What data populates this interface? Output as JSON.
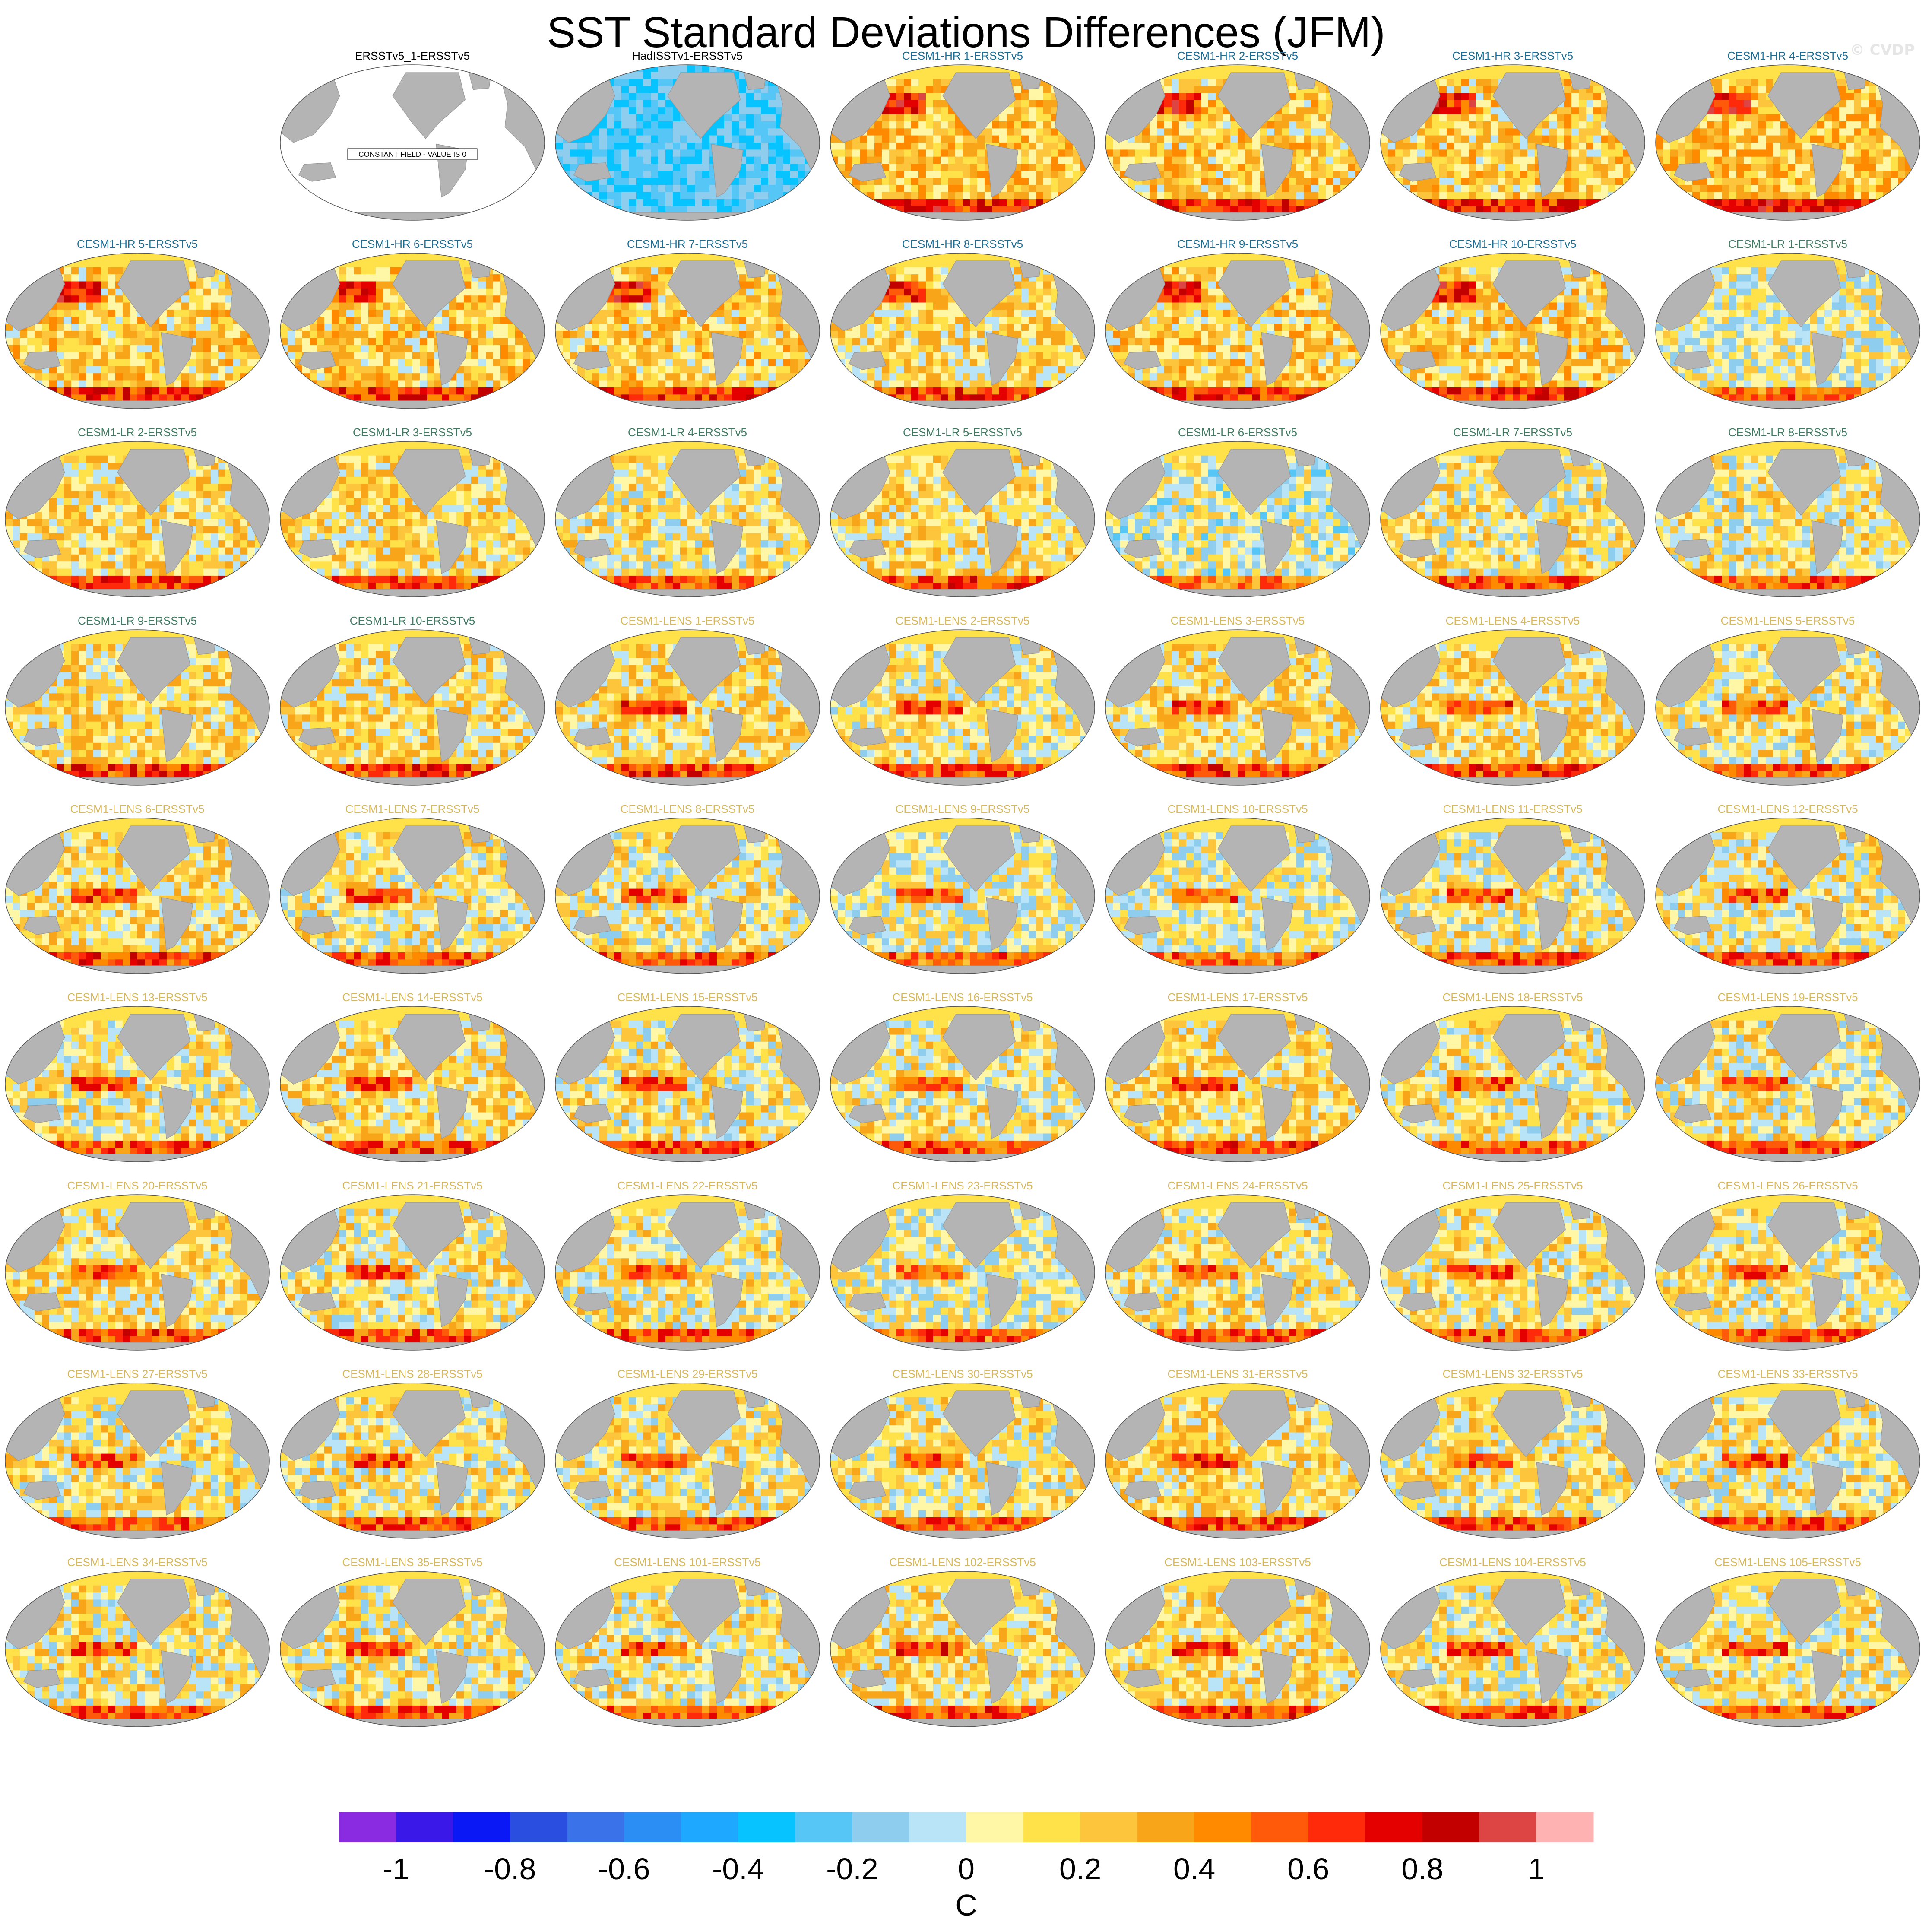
{
  "chart_data": {
    "type": "heatmap",
    "title": "SST Standard Deviations Differences (JFM)",
    "watermark": "© CVDP",
    "colorbar": {
      "unit_label": "C",
      "tick_labels": [
        "-1",
        "-0.8",
        "-0.6",
        "-0.4",
        "-0.2",
        "0",
        "0.2",
        "0.4",
        "0.6",
        "0.8",
        "1"
      ],
      "range": [
        -1.1,
        1.1
      ],
      "colors": [
        "#8a2be2",
        "#3a18e8",
        "#0a18f5",
        "#2a4fe0",
        "#3a72ea",
        "#2a8ef5",
        "#1ea8ff",
        "#07c3ff",
        "#55c6f5",
        "#8fcdee",
        "#b9e3f6",
        "#fff7a5",
        "#ffe14a",
        "#fcc53c",
        "#f9a51a",
        "#ff8a00",
        "#ff5a0a",
        "#ff2a0a",
        "#e50000",
        "#c20000",
        "#dd4444",
        "#ffb2b2"
      ]
    },
    "constant_field_note": "CONSTANT FIELD - VALUE IS 0",
    "panels": [
      {
        "title": "ERSSTv5_1-ERSSTv5",
        "group": "obs",
        "constant": true
      },
      {
        "title": "HadISSTv1-ERSSTv5",
        "group": "obs",
        "mean_bias": -0.25
      },
      {
        "title": "CESM1-HR 1-ERSSTv5",
        "group": "hr",
        "mean_bias": 0.25
      },
      {
        "title": "CESM1-HR 2-ERSSTv5",
        "group": "hr",
        "mean_bias": 0.2
      },
      {
        "title": "CESM1-HR 3-ERSSTv5",
        "group": "hr",
        "mean_bias": 0.2
      },
      {
        "title": "CESM1-HR 4-ERSSTv5",
        "group": "hr",
        "mean_bias": 0.25
      },
      {
        "title": "CESM1-HR 5-ERSSTv5",
        "group": "hr",
        "mean_bias": 0.2
      },
      {
        "title": "CESM1-HR 6-ERSSTv5",
        "group": "hr",
        "mean_bias": 0.2
      },
      {
        "title": "CESM1-HR 7-ERSSTv5",
        "group": "hr",
        "mean_bias": 0.2
      },
      {
        "title": "CESM1-HR 8-ERSSTv5",
        "group": "hr",
        "mean_bias": 0.15
      },
      {
        "title": "CESM1-HR 9-ERSSTv5",
        "group": "hr",
        "mean_bias": 0.2
      },
      {
        "title": "CESM1-HR 10-ERSSTv5",
        "group": "hr",
        "mean_bias": 0.2
      },
      {
        "title": "CESM1-LR 1-ERSSTv5",
        "group": "lr",
        "mean_bias": 0.05
      },
      {
        "title": "CESM1-LR 2-ERSSTv5",
        "group": "lr",
        "mean_bias": 0.15
      },
      {
        "title": "CESM1-LR 3-ERSSTv5",
        "group": "lr",
        "mean_bias": 0.15
      },
      {
        "title": "CESM1-LR 4-ERSSTv5",
        "group": "lr",
        "mean_bias": 0.1
      },
      {
        "title": "CESM1-LR 5-ERSSTv5",
        "group": "lr",
        "mean_bias": 0.15
      },
      {
        "title": "CESM1-LR 6-ERSSTv5",
        "group": "lr",
        "mean_bias": 0.0
      },
      {
        "title": "CESM1-LR 7-ERSSTv5",
        "group": "lr",
        "mean_bias": 0.1
      },
      {
        "title": "CESM1-LR 8-ERSSTv5",
        "group": "lr",
        "mean_bias": 0.1
      },
      {
        "title": "CESM1-LR 9-ERSSTv5",
        "group": "lr",
        "mean_bias": 0.15
      },
      {
        "title": "CESM1-LR 10-ERSSTv5",
        "group": "lr",
        "mean_bias": 0.15
      },
      {
        "title": "CESM1-LENS 1-ERSSTv5",
        "group": "lens",
        "mean_bias": 0.15
      },
      {
        "title": "CESM1-LENS 2-ERSSTv5",
        "group": "lens",
        "mean_bias": 0.1
      },
      {
        "title": "CESM1-LENS 3-ERSSTv5",
        "group": "lens",
        "mean_bias": 0.15
      },
      {
        "title": "CESM1-LENS 4-ERSSTv5",
        "group": "lens",
        "mean_bias": 0.15
      },
      {
        "title": "CESM1-LENS 5-ERSSTv5",
        "group": "lens",
        "mean_bias": 0.1
      },
      {
        "title": "CESM1-LENS 6-ERSSTv5",
        "group": "lens",
        "mean_bias": 0.15
      },
      {
        "title": "CESM1-LENS 7-ERSSTv5",
        "group": "lens",
        "mean_bias": 0.1
      },
      {
        "title": "CESM1-LENS 8-ERSSTv5",
        "group": "lens",
        "mean_bias": 0.1
      },
      {
        "title": "CESM1-LENS 9-ERSSTv5",
        "group": "lens",
        "mean_bias": 0.05
      },
      {
        "title": "CESM1-LENS 10-ERSSTv5",
        "group": "lens",
        "mean_bias": 0.05
      },
      {
        "title": "CESM1-LENS 11-ERSSTv5",
        "group": "lens",
        "mean_bias": 0.1
      },
      {
        "title": "CESM1-LENS 12-ERSSTv5",
        "group": "lens",
        "mean_bias": 0.1
      },
      {
        "title": "CESM1-LENS 13-ERSSTv5",
        "group": "lens",
        "mean_bias": 0.1
      },
      {
        "title": "CESM1-LENS 14-ERSSTv5",
        "group": "lens",
        "mean_bias": 0.15
      },
      {
        "title": "CESM1-LENS 15-ERSSTv5",
        "group": "lens",
        "mean_bias": 0.1
      },
      {
        "title": "CESM1-LENS 16-ERSSTv5",
        "group": "lens",
        "mean_bias": 0.1
      },
      {
        "title": "CESM1-LENS 17-ERSSTv5",
        "group": "lens",
        "mean_bias": 0.15
      },
      {
        "title": "CESM1-LENS 18-ERSSTv5",
        "group": "lens",
        "mean_bias": 0.1
      },
      {
        "title": "CESM1-LENS 19-ERSSTv5",
        "group": "lens",
        "mean_bias": 0.1
      },
      {
        "title": "CESM1-LENS 20-ERSSTv5",
        "group": "lens",
        "mean_bias": 0.15
      },
      {
        "title": "CESM1-LENS 21-ERSSTv5",
        "group": "lens",
        "mean_bias": 0.1
      },
      {
        "title": "CESM1-LENS 22-ERSSTv5",
        "group": "lens",
        "mean_bias": 0.1
      },
      {
        "title": "CESM1-LENS 23-ERSSTv5",
        "group": "lens",
        "mean_bias": 0.05
      },
      {
        "title": "CESM1-LENS 24-ERSSTv5",
        "group": "lens",
        "mean_bias": 0.1
      },
      {
        "title": "CESM1-LENS 25-ERSSTv5",
        "group": "lens",
        "mean_bias": 0.1
      },
      {
        "title": "CESM1-LENS 26-ERSSTv5",
        "group": "lens",
        "mean_bias": 0.1
      },
      {
        "title": "CESM1-LENS 27-ERSSTv5",
        "group": "lens",
        "mean_bias": 0.1
      },
      {
        "title": "CESM1-LENS 28-ERSSTv5",
        "group": "lens",
        "mean_bias": 0.1
      },
      {
        "title": "CESM1-LENS 29-ERSSTv5",
        "group": "lens",
        "mean_bias": 0.1
      },
      {
        "title": "CESM1-LENS 30-ERSSTv5",
        "group": "lens",
        "mean_bias": 0.1
      },
      {
        "title": "CESM1-LENS 31-ERSSTv5",
        "group": "lens",
        "mean_bias": 0.15
      },
      {
        "title": "CESM1-LENS 32-ERSSTv5",
        "group": "lens",
        "mean_bias": 0.1
      },
      {
        "title": "CESM1-LENS 33-ERSSTv5",
        "group": "lens",
        "mean_bias": 0.1
      },
      {
        "title": "CESM1-LENS 34-ERSSTv5",
        "group": "lens",
        "mean_bias": 0.1
      },
      {
        "title": "CESM1-LENS 35-ERSSTv5",
        "group": "lens",
        "mean_bias": 0.1
      },
      {
        "title": "CESM1-LENS 101-ERSSTv5",
        "group": "lens",
        "mean_bias": 0.1
      },
      {
        "title": "CESM1-LENS 102-ERSSTv5",
        "group": "lens",
        "mean_bias": 0.15
      },
      {
        "title": "CESM1-LENS 103-ERSSTv5",
        "group": "lens",
        "mean_bias": 0.15
      },
      {
        "title": "CESM1-LENS 104-ERSSTv5",
        "group": "lens",
        "mean_bias": 0.1
      },
      {
        "title": "CESM1-LENS 105-ERSSTv5",
        "group": "lens",
        "mean_bias": 0.1
      }
    ],
    "group_colors": {
      "obs": "#000000",
      "hr": "#1a6e96",
      "lr": "#3f7a62",
      "lens": "#d8b85a"
    }
  }
}
